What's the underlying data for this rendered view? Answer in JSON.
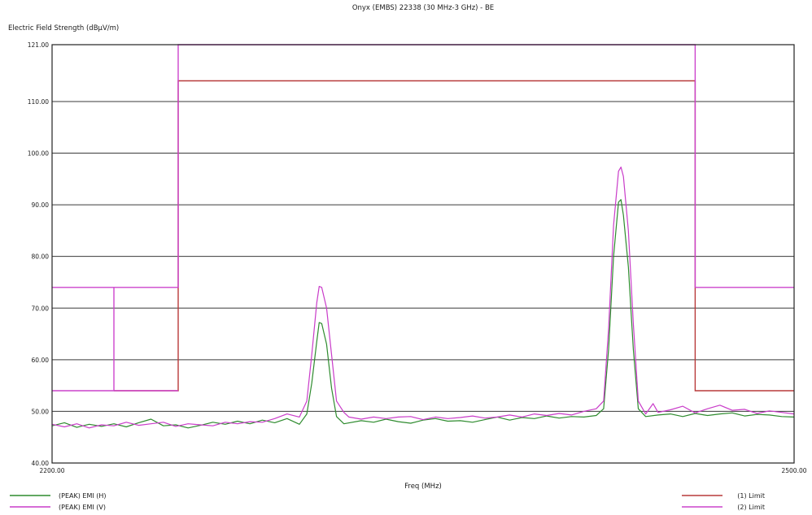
{
  "chart_data": {
    "type": "line",
    "title": "Onyx (EMBS) 22338 (30 MHz-3 GHz) - BE",
    "ylabel": "Electric Field Strength (dBµV/m)",
    "xlabel": "Freq (MHz)",
    "xlim": [
      2200.0,
      2500.0
    ],
    "ylim": [
      40.0,
      121.0
    ],
    "x_tick_labels": [
      "2200.00",
      "2500.00"
    ],
    "y_tick_labels": [
      "121.00",
      "110.00",
      "100.00",
      "90.00",
      "80.00",
      "70.00",
      "60.00",
      "50.00",
      "40.00"
    ],
    "y_ticks": [
      121,
      110,
      100,
      90,
      80,
      70,
      60,
      50,
      40
    ],
    "grid": true,
    "colors": {
      "emi_h": "#2e8b2e",
      "emi_v": "#c93cc9",
      "limit1": "#b83a3a",
      "limit2": "#cc44cc"
    },
    "series": [
      {
        "name": "(PEAK) EMI (H)",
        "color": "#2e8b2e",
        "points": [
          [
            2200,
            47.2
          ],
          [
            2205,
            47.8
          ],
          [
            2210,
            46.9
          ],
          [
            2215,
            47.5
          ],
          [
            2220,
            47.1
          ],
          [
            2225,
            47.6
          ],
          [
            2230,
            47.0
          ],
          [
            2235,
            47.8
          ],
          [
            2240,
            48.5
          ],
          [
            2245,
            47.2
          ],
          [
            2250,
            47.4
          ],
          [
            2255,
            46.8
          ],
          [
            2260,
            47.3
          ],
          [
            2265,
            47.9
          ],
          [
            2270,
            47.5
          ],
          [
            2275,
            48.1
          ],
          [
            2280,
            47.6
          ],
          [
            2285,
            48.3
          ],
          [
            2290,
            47.8
          ],
          [
            2295,
            48.6
          ],
          [
            2300,
            47.5
          ],
          [
            2303,
            49.5
          ],
          [
            2305,
            55.5
          ],
          [
            2307,
            63.5
          ],
          [
            2308,
            67.2
          ],
          [
            2309,
            67.0
          ],
          [
            2311,
            63.0
          ],
          [
            2313,
            54.5
          ],
          [
            2315,
            49.0
          ],
          [
            2318,
            47.6
          ],
          [
            2325,
            48.2
          ],
          [
            2330,
            47.9
          ],
          [
            2335,
            48.5
          ],
          [
            2340,
            48.0
          ],
          [
            2345,
            47.7
          ],
          [
            2350,
            48.3
          ],
          [
            2355,
            48.6
          ],
          [
            2360,
            48.1
          ],
          [
            2365,
            48.2
          ],
          [
            2370,
            47.9
          ],
          [
            2375,
            48.4
          ],
          [
            2380,
            48.9
          ],
          [
            2385,
            48.3
          ],
          [
            2390,
            48.8
          ],
          [
            2395,
            48.6
          ],
          [
            2400,
            49.1
          ],
          [
            2405,
            48.7
          ],
          [
            2410,
            49.0
          ],
          [
            2415,
            48.9
          ],
          [
            2420,
            49.2
          ],
          [
            2423,
            50.5
          ],
          [
            2425,
            62.0
          ],
          [
            2427,
            80.0
          ],
          [
            2429,
            90.5
          ],
          [
            2430,
            91.0
          ],
          [
            2431,
            88.0
          ],
          [
            2433,
            78.0
          ],
          [
            2435,
            62.0
          ],
          [
            2437,
            50.5
          ],
          [
            2440,
            49.0
          ],
          [
            2445,
            49.3
          ],
          [
            2450,
            49.5
          ],
          [
            2455,
            49.0
          ],
          [
            2460,
            49.6
          ],
          [
            2465,
            49.2
          ],
          [
            2470,
            49.5
          ],
          [
            2475,
            49.7
          ],
          [
            2480,
            49.1
          ],
          [
            2485,
            49.4
          ],
          [
            2490,
            49.3
          ],
          [
            2495,
            49.0
          ],
          [
            2500,
            48.9
          ]
        ]
      },
      {
        "name": "(PEAK) EMI (V)",
        "color": "#c93cc9",
        "points": [
          [
            2200,
            47.5
          ],
          [
            2205,
            47.0
          ],
          [
            2210,
            47.6
          ],
          [
            2215,
            46.8
          ],
          [
            2220,
            47.4
          ],
          [
            2225,
            47.2
          ],
          [
            2230,
            47.9
          ],
          [
            2235,
            47.3
          ],
          [
            2240,
            47.6
          ],
          [
            2245,
            47.9
          ],
          [
            2250,
            47.1
          ],
          [
            2255,
            47.6
          ],
          [
            2260,
            47.4
          ],
          [
            2265,
            47.2
          ],
          [
            2270,
            47.9
          ],
          [
            2275,
            47.6
          ],
          [
            2280,
            48.0
          ],
          [
            2285,
            47.9
          ],
          [
            2290,
            48.6
          ],
          [
            2295,
            49.5
          ],
          [
            2300,
            48.9
          ],
          [
            2303,
            52.0
          ],
          [
            2305,
            61.0
          ],
          [
            2307,
            71.0
          ],
          [
            2308,
            74.2
          ],
          [
            2309,
            74.0
          ],
          [
            2311,
            70.0
          ],
          [
            2313,
            61.0
          ],
          [
            2315,
            52.0
          ],
          [
            2318,
            49.8
          ],
          [
            2320,
            48.9
          ],
          [
            2325,
            48.5
          ],
          [
            2330,
            48.9
          ],
          [
            2335,
            48.6
          ],
          [
            2340,
            48.9
          ],
          [
            2345,
            49.0
          ],
          [
            2350,
            48.4
          ],
          [
            2355,
            48.9
          ],
          [
            2360,
            48.6
          ],
          [
            2365,
            48.8
          ],
          [
            2370,
            49.1
          ],
          [
            2375,
            48.7
          ],
          [
            2380,
            48.9
          ],
          [
            2385,
            49.3
          ],
          [
            2390,
            48.9
          ],
          [
            2395,
            49.5
          ],
          [
            2400,
            49.2
          ],
          [
            2405,
            49.6
          ],
          [
            2410,
            49.3
          ],
          [
            2415,
            50.0
          ],
          [
            2420,
            50.5
          ],
          [
            2423,
            52.0
          ],
          [
            2425,
            66.0
          ],
          [
            2427,
            86.0
          ],
          [
            2429,
            96.5
          ],
          [
            2430,
            97.3
          ],
          [
            2431,
            95.5
          ],
          [
            2433,
            85.0
          ],
          [
            2435,
            67.0
          ],
          [
            2437,
            52.0
          ],
          [
            2440,
            49.5
          ],
          [
            2443,
            51.5
          ],
          [
            2445,
            49.8
          ],
          [
            2450,
            50.3
          ],
          [
            2455,
            51.0
          ],
          [
            2460,
            49.7
          ],
          [
            2465,
            50.5
          ],
          [
            2470,
            51.2
          ],
          [
            2475,
            50.2
          ],
          [
            2480,
            50.4
          ],
          [
            2485,
            49.6
          ],
          [
            2490,
            50.1
          ],
          [
            2495,
            49.8
          ],
          [
            2500,
            49.5
          ]
        ]
      }
    ],
    "limit_lines": [
      {
        "name": "(1) Limit",
        "color": "#b83a3a",
        "points": [
          [
            2225,
            54
          ],
          [
            2251,
            54
          ],
          [
            2251,
            114
          ],
          [
            2460,
            114
          ],
          [
            2460,
            54
          ],
          [
            2500,
            54
          ]
        ]
      },
      {
        "name": "(2) Limit",
        "color": "#cc44cc",
        "points": [
          [
            2200,
            74
          ],
          [
            2251,
            74
          ],
          [
            2251,
            121
          ],
          [
            2460,
            121
          ],
          [
            2460,
            74
          ],
          [
            2500,
            74
          ]
        ],
        "extra_segments": [
          [
            [
              2200,
              54
            ],
            [
              2251,
              54
            ]
          ],
          [
            [
              2225,
              54
            ],
            [
              2225,
              74
            ]
          ]
        ]
      }
    ],
    "legend": {
      "left": [
        "(PEAK) EMI (H)",
        "(PEAK) EMI (V)"
      ],
      "right": [
        "(1) Limit",
        "(2) Limit"
      ]
    }
  }
}
